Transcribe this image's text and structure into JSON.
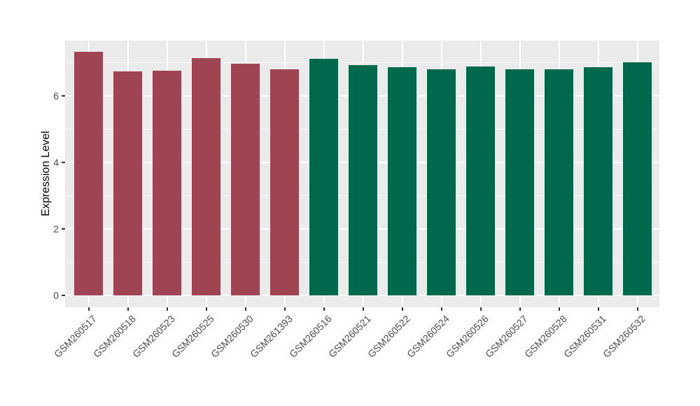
{
  "figure": {
    "background": "#FFFFFF",
    "panel_background": "#EBEBEB",
    "grid_color": "#FFFFFF",
    "tick_mark_color": "#333333",
    "axis_text_color": "#4D4D4D",
    "axis_title_color": "#000000",
    "group_colors": {
      "maroon": "#9E4452",
      "green": "#00684B"
    }
  },
  "chart_data": {
    "type": "bar",
    "title": "",
    "xlabel": "",
    "ylabel": "Expression Level",
    "ylim": [
      0,
      7.7
    ],
    "yticks_major": [
      0,
      2,
      4,
      6
    ],
    "yticks_minor": [
      1,
      3,
      5,
      7
    ],
    "grid": "major+minor white on gray panel",
    "legend_position": "none",
    "categories": [
      "GSM260517",
      "GSM260518",
      "GSM260523",
      "GSM260525",
      "GSM260530",
      "GSM261393",
      "GSM260516",
      "GSM260521",
      "GSM260522",
      "GSM260524",
      "GSM260526",
      "GSM260527",
      "GSM260528",
      "GSM260531",
      "GSM260532"
    ],
    "values": [
      7.33,
      6.74,
      6.75,
      7.14,
      6.97,
      6.79,
      7.12,
      6.93,
      6.86,
      6.8,
      6.89,
      6.79,
      6.81,
      6.87,
      7.01
    ],
    "bar_colors": [
      "#9E4452",
      "#9E4452",
      "#9E4452",
      "#9E4452",
      "#9E4452",
      "#9E4452",
      "#00684B",
      "#00684B",
      "#00684B",
      "#00684B",
      "#00684B",
      "#00684B",
      "#00684B",
      "#00684B",
      "#00684B"
    ]
  }
}
